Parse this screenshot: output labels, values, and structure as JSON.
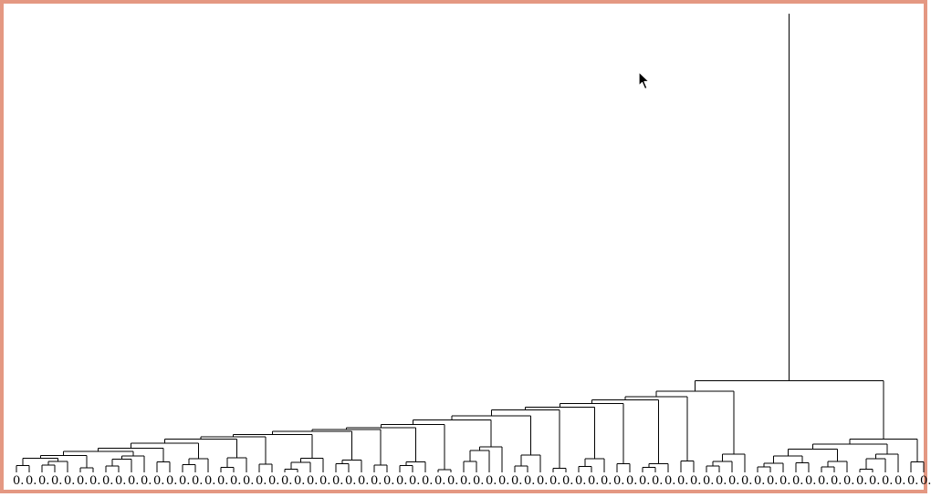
{
  "chart_data": {
    "type": "dendrogram",
    "leaf_count": 72,
    "leaf_labels": [
      "0.",
      "0.",
      "0.",
      "0.",
      "0.",
      "0.",
      "0.",
      "0.",
      "0.",
      "0.",
      "0.",
      "0.",
      "0.",
      "0.",
      "0.",
      "0.",
      "0.",
      "0.",
      "0.",
      "0.",
      "0.",
      "0.",
      "0.",
      "0.",
      "0.",
      "0.",
      "0.",
      "0.",
      "0.",
      "0.",
      "0.",
      "0.",
      "0.",
      "0.",
      "0.",
      "0.",
      "0.",
      "0.",
      "0.",
      "0.",
      "0.",
      "0.",
      "0.",
      "0.",
      "0.",
      "0.",
      "0.",
      "0.",
      "0.",
      "0.",
      "0.",
      "0.",
      "0.",
      "0.",
      "0.",
      "0.",
      "0.",
      "0.",
      "0.",
      "0.",
      "0.",
      "0.",
      "0.",
      "0.",
      "0.",
      "0.",
      "0.",
      "0.",
      "0.",
      "0.",
      "0.",
      "0."
    ],
    "root_height": 1.0,
    "top_merge_height": 0.2,
    "axis_visible": false,
    "grid": false,
    "legend": "none"
  },
  "colors": {
    "frame": "#e49882",
    "background": "#ffffff",
    "links": "#000000"
  },
  "icons": {
    "pointer": "mouse-pointer-icon"
  }
}
